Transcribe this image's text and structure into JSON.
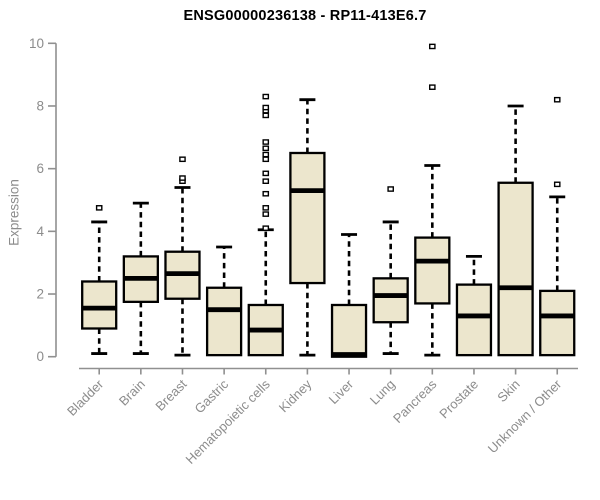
{
  "chart_data": {
    "type": "boxplot",
    "title": "ENSG00000236138 - RP11-413E6.7",
    "ylabel": "Expression",
    "xlabel": "",
    "ylim": [
      0,
      10
    ],
    "yticks": [
      "0",
      "2",
      "4",
      "6",
      "8",
      "10"
    ],
    "grid": false,
    "legend": "none",
    "categories": [
      "Bladder",
      "Brain",
      "Breast",
      "Gastric",
      "Hematopoietic cells",
      "Kidney",
      "Liver",
      "Lung",
      "Pancreas",
      "Prostate",
      "Skin",
      "Unknown / Other"
    ],
    "boxes": [
      {
        "category": "Bladder",
        "whisker_low": 0.1,
        "q1": 0.9,
        "median": 1.55,
        "q3": 2.4,
        "whisker_high": 4.3,
        "outliers": [
          4.75
        ]
      },
      {
        "category": "Brain",
        "whisker_low": 0.1,
        "q1": 1.75,
        "median": 2.5,
        "q3": 3.2,
        "whisker_high": 4.9,
        "outliers": []
      },
      {
        "category": "Breast",
        "whisker_low": 0.05,
        "q1": 1.85,
        "median": 2.65,
        "q3": 3.35,
        "whisker_high": 5.4,
        "outliers": [
          5.6,
          5.7,
          6.3
        ]
      },
      {
        "category": "Gastric",
        "whisker_low": 0.05,
        "q1": 0.05,
        "median": 1.5,
        "q3": 2.2,
        "whisker_high": 3.5,
        "outliers": []
      },
      {
        "category": "Hematopoietic cells",
        "whisker_low": 0.05,
        "q1": 0.05,
        "median": 0.85,
        "q3": 1.65,
        "whisker_high": 4.05,
        "outliers": [
          4.1,
          4.55,
          4.75,
          5.2,
          5.6,
          5.85,
          6.3,
          6.45,
          6.65,
          6.85,
          7.7,
          7.85,
          7.95,
          8.3
        ]
      },
      {
        "category": "Kidney",
        "whisker_low": 0.05,
        "q1": 2.35,
        "median": 5.3,
        "q3": 6.5,
        "whisker_high": 8.2,
        "outliers": []
      },
      {
        "category": "Liver",
        "whisker_low": 0.0,
        "q1": 0.0,
        "median": 0.07,
        "q3": 1.65,
        "whisker_high": 3.9,
        "outliers": []
      },
      {
        "category": "Lung",
        "whisker_low": 0.1,
        "q1": 1.1,
        "median": 1.95,
        "q3": 2.5,
        "whisker_high": 4.3,
        "outliers": [
          5.35
        ]
      },
      {
        "category": "Pancreas",
        "whisker_low": 0.05,
        "q1": 1.7,
        "median": 3.05,
        "q3": 3.8,
        "whisker_high": 6.1,
        "outliers": [
          8.6,
          9.9
        ]
      },
      {
        "category": "Prostate",
        "whisker_low": 0.05,
        "q1": 0.05,
        "median": 1.3,
        "q3": 2.3,
        "whisker_high": 3.2,
        "outliers": []
      },
      {
        "category": "Skin",
        "whisker_low": 0.05,
        "q1": 0.05,
        "median": 2.2,
        "q3": 5.55,
        "whisker_high": 8.0,
        "outliers": []
      },
      {
        "category": "Unknown / Other",
        "whisker_low": 0.05,
        "q1": 0.05,
        "median": 1.3,
        "q3": 2.1,
        "whisker_high": 5.1,
        "outliers": [
          5.5,
          8.2
        ]
      }
    ],
    "colors": {
      "box_fill": "#ece6cd",
      "box_stroke": "#000000",
      "median": "#000000",
      "whisker": "#000000",
      "outlier_fill": "#ffffff",
      "outlier_stroke": "#000000",
      "axis": "#909090",
      "tick_label": "#8c8c8c",
      "title": "#000000",
      "background": "#ffffff"
    }
  }
}
